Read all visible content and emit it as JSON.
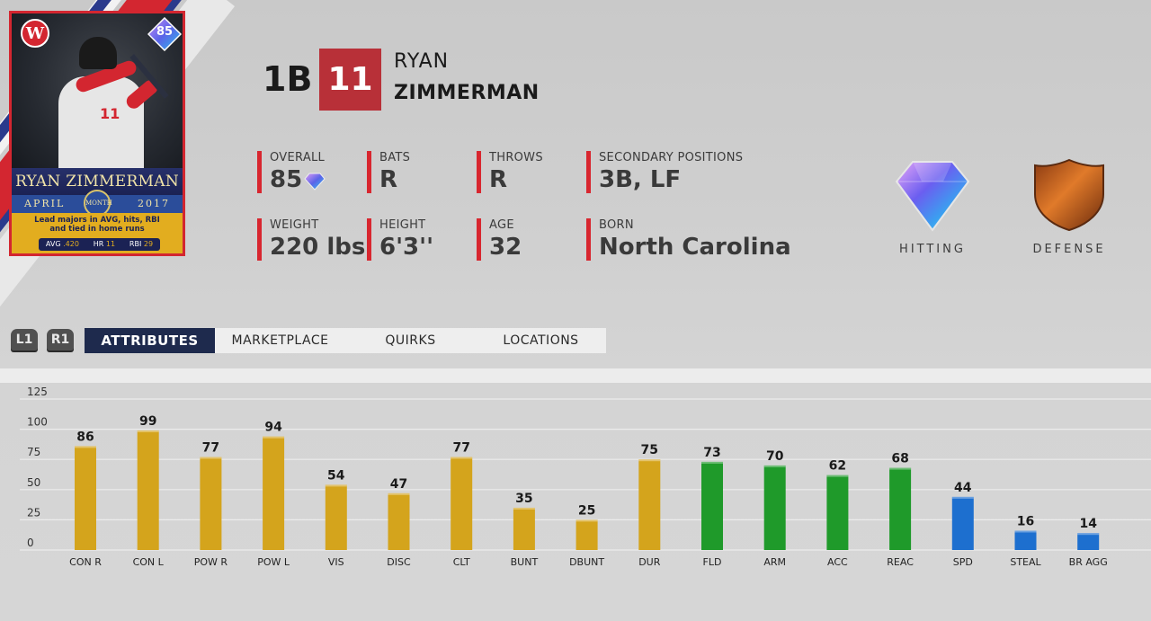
{
  "card": {
    "rating": "85",
    "team_logo_letter": "W",
    "name": "RYAN ZIMMERMAN",
    "month": "APRIL",
    "year": "2017",
    "badge": "MONTH",
    "description_line1": "Lead majors in AVG, hits, RBI",
    "description_line2": "and tied in home runs",
    "stats": [
      {
        "label": "AVG",
        "value": ".420"
      },
      {
        "label": "HR",
        "value": "11"
      },
      {
        "label": "RBI",
        "value": "29"
      }
    ],
    "jersey_number": "11"
  },
  "player": {
    "position": "1B",
    "number": "11",
    "first_name": "RYAN",
    "last_name": "ZIMMERMAN"
  },
  "info": {
    "overall_label": "OVERALL",
    "overall_value": "85",
    "bats_label": "BATS",
    "bats_value": "R",
    "throws_label": "THROWS",
    "throws_value": "R",
    "secondary_label": "SECONDARY POSITIONS",
    "secondary_value": "3B, LF",
    "weight_label": "WEIGHT",
    "weight_value": "220 lbs",
    "height_label": "HEIGHT",
    "height_value": "6'3''",
    "age_label": "AGE",
    "age_value": "32",
    "born_label": "BORN",
    "born_value": "North Carolina"
  },
  "badges": {
    "hitting_label": "HITTING",
    "defense_label": "DEFENSE"
  },
  "shoulders": {
    "left": "L1",
    "right": "R1"
  },
  "tabs": [
    {
      "label": "ATTRIBUTES",
      "active": true
    },
    {
      "label": "MARKETPLACE",
      "active": false
    },
    {
      "label": "QUIRKS",
      "active": false
    },
    {
      "label": "LOCATIONS",
      "active": false
    }
  ],
  "colors": {
    "hitting": "#d4a41c",
    "defense": "#1f9a2a",
    "speed": "#1d6fcf",
    "accent_red": "#d8262f",
    "tab_active": "#1e2a4d"
  },
  "chart_data": {
    "type": "bar",
    "categories": [
      "CON R",
      "CON L",
      "POW R",
      "POW L",
      "VIS",
      "DISC",
      "CLT",
      "BUNT",
      "DBUNT",
      "DUR",
      "FLD",
      "ARM",
      "ACC",
      "REAC",
      "SPD",
      "STEAL",
      "BR AGG"
    ],
    "values": [
      86,
      99,
      77,
      94,
      54,
      47,
      77,
      35,
      25,
      75,
      73,
      70,
      62,
      68,
      44,
      16,
      14
    ],
    "groups": [
      "hitting",
      "hitting",
      "hitting",
      "hitting",
      "hitting",
      "hitting",
      "hitting",
      "hitting",
      "hitting",
      "hitting",
      "defense",
      "defense",
      "defense",
      "defense",
      "speed",
      "speed",
      "speed"
    ],
    "yticks": [
      0,
      25,
      50,
      75,
      100,
      125
    ],
    "ylim": [
      0,
      125
    ],
    "grid": true
  }
}
